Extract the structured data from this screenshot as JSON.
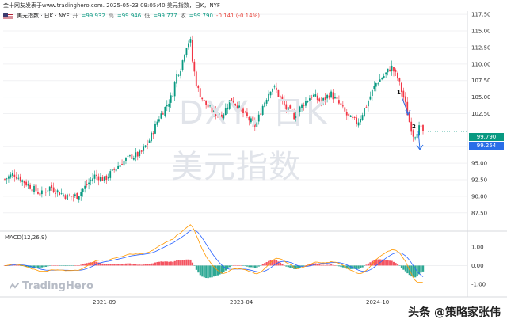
{
  "header": {
    "publisher": "金十网友发表于www.tradinghero.com. 2025-05-23 09:05:40 美元指数，日K，NYF",
    "symbol": "美元指数 · 日K · NYF",
    "open_label": "开",
    "open": "=99.932",
    "high_label": "高",
    "high": "=99.946",
    "low_label": "低",
    "low": "=99.777",
    "close_label": "收",
    "close": "=99.790",
    "change": "-0.141 (-0.14%)"
  },
  "watermark": {
    "ticker": "DXY, 日K",
    "name": "美元指数"
  },
  "logo": {
    "text": "TradingHero",
    "icon": "tradinghero-logo-icon"
  },
  "indicator": {
    "label": "MACD(12,26,9)"
  },
  "annotations": {
    "mark1": "1",
    "mark2": "2"
  },
  "price_tags": {
    "last": "99.790",
    "level": "99.254"
  },
  "colors": {
    "up": "#089981",
    "down": "#f23645",
    "macd_line": "#ff9800",
    "signal_line": "#2962ff",
    "level_line": "#2a6ee8"
  },
  "footer": {
    "text": "头条 @策略家张伟"
  },
  "chart_data": {
    "type": "candlestick",
    "title": "",
    "x_ticks": [
      "2021-09",
      "2023-04",
      "2024-10"
    ],
    "y_ticks": [
      117.5,
      115.0,
      112.5,
      110.0,
      107.5,
      105.0,
      102.5,
      97.5,
      95.0,
      92.5,
      90.0,
      87.5
    ],
    "ylim": [
      85.2,
      118.0
    ],
    "macd_ticks": [
      1.0,
      0.0,
      -1.0
    ],
    "macd_ylim": [
      -1.55,
      1.5
    ],
    "horizontal_level": 99.254,
    "last_close": 99.79,
    "price_path": [
      {
        "t": 0,
        "v": 92.6
      },
      {
        "t": 0.02,
        "v": 93.4
      },
      {
        "t": 0.05,
        "v": 91.8
      },
      {
        "t": 0.08,
        "v": 90.3
      },
      {
        "t": 0.1,
        "v": 91.4
      },
      {
        "t": 0.12,
        "v": 90.6
      },
      {
        "t": 0.14,
        "v": 89.9
      },
      {
        "t": 0.16,
        "v": 90.1
      },
      {
        "t": 0.18,
        "v": 91.6
      },
      {
        "t": 0.2,
        "v": 93.2
      },
      {
        "t": 0.22,
        "v": 92.5
      },
      {
        "t": 0.24,
        "v": 93.9
      },
      {
        "t": 0.26,
        "v": 95.2
      },
      {
        "t": 0.28,
        "v": 96.0
      },
      {
        "t": 0.3,
        "v": 96.4
      },
      {
        "t": 0.32,
        "v": 98.5
      },
      {
        "t": 0.34,
        "v": 101.8
      },
      {
        "t": 0.36,
        "v": 104.0
      },
      {
        "t": 0.37,
        "v": 105.2
      },
      {
        "t": 0.38,
        "v": 108.3
      },
      {
        "t": 0.39,
        "v": 109.5
      },
      {
        "t": 0.4,
        "v": 112.6
      },
      {
        "t": 0.41,
        "v": 113.8
      },
      {
        "t": 0.415,
        "v": 110.4
      },
      {
        "t": 0.425,
        "v": 106.5
      },
      {
        "t": 0.44,
        "v": 104.3
      },
      {
        "t": 0.46,
        "v": 102.7
      },
      {
        "t": 0.48,
        "v": 102.1
      },
      {
        "t": 0.5,
        "v": 104.8
      },
      {
        "t": 0.52,
        "v": 103.1
      },
      {
        "t": 0.54,
        "v": 101.6
      },
      {
        "t": 0.555,
        "v": 100.6
      },
      {
        "t": 0.57,
        "v": 103.6
      },
      {
        "t": 0.59,
        "v": 106.6
      },
      {
        "t": 0.6,
        "v": 106.0
      },
      {
        "t": 0.62,
        "v": 103.4
      },
      {
        "t": 0.64,
        "v": 102.1
      },
      {
        "t": 0.66,
        "v": 104.0
      },
      {
        "t": 0.68,
        "v": 105.3
      },
      {
        "t": 0.7,
        "v": 104.2
      },
      {
        "t": 0.72,
        "v": 105.6
      },
      {
        "t": 0.74,
        "v": 103.9
      },
      {
        "t": 0.76,
        "v": 101.9
      },
      {
        "t": 0.78,
        "v": 101.1
      },
      {
        "t": 0.8,
        "v": 103.8
      },
      {
        "t": 0.82,
        "v": 107.0
      },
      {
        "t": 0.84,
        "v": 108.3
      },
      {
        "t": 0.855,
        "v": 109.6
      },
      {
        "t": 0.87,
        "v": 107.7
      },
      {
        "t": 0.885,
        "v": 104.2
      },
      {
        "t": 0.895,
        "v": 101.2
      },
      {
        "t": 0.905,
        "v": 99.0
      },
      {
        "t": 0.915,
        "v": 100.4
      },
      {
        "t": 0.925,
        "v": 99.8
      }
    ]
  }
}
